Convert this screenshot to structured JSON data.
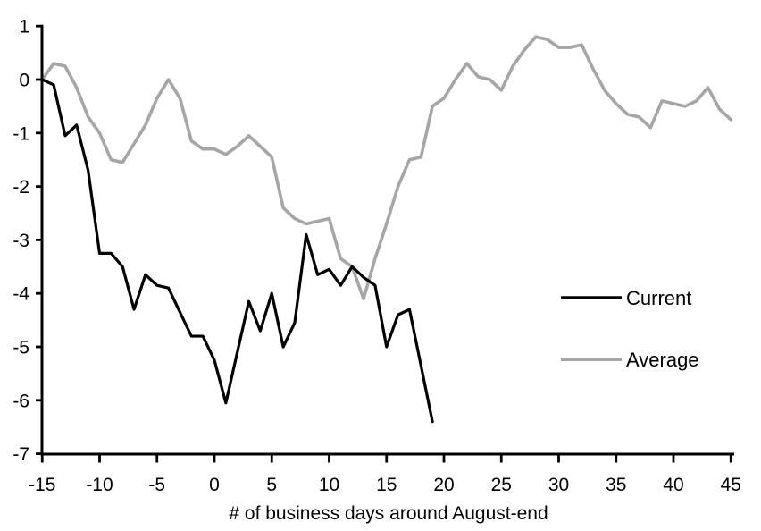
{
  "chart_data": {
    "type": "line",
    "title": "",
    "xlabel": "# of business days around August-end",
    "ylabel": "",
    "xlim": [
      -15,
      45
    ],
    "ylim": [
      -7,
      1
    ],
    "x_ticks": [
      -15,
      -10,
      -5,
      0,
      5,
      10,
      15,
      20,
      25,
      30,
      35,
      40,
      45
    ],
    "y_ticks": [
      1,
      0,
      -1,
      -2,
      -3,
      -4,
      -5,
      -6,
      -7
    ],
    "grid": false,
    "legend_position": "right-middle",
    "background_color": "#ffffff",
    "axis_color": "#000000",
    "series": [
      {
        "name": "Current",
        "color": "#000000",
        "stroke_width": 3.2,
        "x": [
          -15,
          -14,
          -13,
          -12,
          -11,
          -10,
          -9,
          -8,
          -7,
          -6,
          -5,
          -4,
          -3,
          -2,
          -1,
          0,
          1,
          2,
          3,
          4,
          5,
          6,
          7,
          8,
          9,
          10,
          11,
          12,
          13,
          14,
          15,
          16,
          17,
          18,
          19
        ],
        "values": [
          0,
          -0.1,
          -1.05,
          -0.85,
          -1.7,
          -3.25,
          -3.25,
          -3.5,
          -4.3,
          -3.65,
          -3.85,
          -3.9,
          -4.35,
          -4.8,
          -4.8,
          -5.25,
          -6.05,
          -5.1,
          -4.15,
          -4.7,
          -4.0,
          -5.0,
          -4.55,
          -2.9,
          -3.65,
          -3.55,
          -3.85,
          -3.5,
          -3.7,
          -3.85,
          -5.0,
          -4.4,
          -4.3,
          -5.35,
          -6.4
        ]
      },
      {
        "name": "Average",
        "color": "#a6a6a6",
        "stroke_width": 3.6,
        "x": [
          -15,
          -14,
          -13,
          -12,
          -11,
          -10,
          -9,
          -8,
          -7,
          -6,
          -5,
          -4,
          -3,
          -2,
          -1,
          0,
          1,
          2,
          3,
          4,
          5,
          6,
          7,
          8,
          9,
          10,
          11,
          12,
          13,
          14,
          15,
          16,
          17,
          18,
          19,
          20,
          21,
          22,
          23,
          24,
          25,
          26,
          27,
          28,
          29,
          30,
          31,
          32,
          33,
          34,
          35,
          36,
          37,
          38,
          39,
          40,
          41,
          42,
          43,
          44,
          45
        ],
        "values": [
          0,
          0.3,
          0.25,
          -0.15,
          -0.7,
          -1.0,
          -1.5,
          -1.55,
          -1.2,
          -0.85,
          -0.35,
          0.0,
          -0.35,
          -1.15,
          -1.3,
          -1.3,
          -1.4,
          -1.25,
          -1.05,
          -1.25,
          -1.45,
          -2.4,
          -2.6,
          -2.7,
          -2.65,
          -2.6,
          -3.35,
          -3.5,
          -4.1,
          -3.35,
          -2.7,
          -2.0,
          -1.5,
          -1.45,
          -0.5,
          -0.35,
          0.0,
          0.3,
          0.05,
          0.0,
          -0.2,
          0.25,
          0.55,
          0.8,
          0.75,
          0.6,
          0.6,
          0.65,
          0.2,
          -0.2,
          -0.45,
          -0.65,
          -0.7,
          -0.9,
          -0.4,
          -0.45,
          -0.5,
          -0.4,
          -0.15,
          -0.55,
          -0.75
        ]
      }
    ]
  },
  "legend": {
    "items": [
      {
        "label": "Current",
        "swatch_color": "#000000"
      },
      {
        "label": "Average",
        "swatch_color": "#a6a6a6"
      }
    ]
  }
}
